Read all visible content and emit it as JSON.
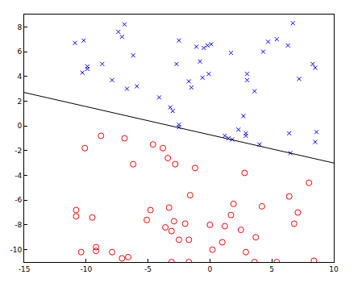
{
  "chart_data": {
    "type": "scatter",
    "xlim": [
      -15,
      10
    ],
    "ylim": [
      -11,
      9
    ],
    "xticks": [
      -15,
      -10,
      -5,
      0,
      5,
      10
    ],
    "yticks": [
      -10,
      -8,
      -6,
      -4,
      -2,
      0,
      2,
      4,
      6,
      8
    ],
    "grid": false,
    "series": [
      {
        "type": "scatter",
        "color": "#0000ff",
        "marker": "x",
        "x": [
          -10.9,
          -10.2,
          -10.3,
          -9.9,
          -9.9,
          -8.7,
          -7.4,
          -7.1,
          -6.9,
          -6.7,
          -6.2,
          -5.9,
          -7.9,
          -4.1,
          -3.2,
          -3.0,
          -2.5,
          -2.5,
          -2.7,
          -2.5,
          -1.7,
          -1.5,
          -1.1,
          -0.8,
          -0.5,
          -0.2,
          0.1,
          -0.1,
          -0.6,
          1.2,
          1.5,
          1.7,
          2.3,
          2.7,
          3.0,
          3.0,
          2.9,
          2.9,
          3.6,
          4.3,
          4.7,
          5.4,
          6.3,
          6.4,
          6.5,
          6.7,
          7.2,
          8.3,
          8.5,
          8.6,
          8.5,
          4.0,
          1.8
        ],
        "values": [
          6.7,
          6.9,
          4.3,
          4.8,
          4.6,
          5.0,
          7.6,
          7.2,
          8.2,
          3.0,
          5.7,
          3.2,
          3.7,
          2.3,
          1.5,
          1.2,
          0.1,
          -0.1,
          5.0,
          6.9,
          3.6,
          3.1,
          6.4,
          5.2,
          6.3,
          6.5,
          6.6,
          4.2,
          3.9,
          -0.8,
          -1.0,
          5.9,
          -0.3,
          0.8,
          4.2,
          3.7,
          -0.8,
          -0.6,
          2.8,
          6.0,
          6.8,
          7.0,
          6.5,
          -0.6,
          -2.2,
          8.3,
          3.8,
          5.0,
          4.7,
          -0.5,
          -1.3,
          -1.5,
          -1.1
        ]
      },
      {
        "type": "scatter",
        "color": "#ff0000",
        "marker": "circle-open",
        "x": [
          -10.8,
          -10.8,
          -10.4,
          -10.1,
          -9.5,
          -9.2,
          -9.2,
          -8.8,
          -7.9,
          -7.1,
          -6.9,
          -6.6,
          -6.2,
          -5.1,
          -4.8,
          -4.6,
          -3.8,
          -3.6,
          -3.4,
          -3.3,
          -3.1,
          -3.1,
          -2.9,
          -2.8,
          -2.5,
          -2.0,
          -1.7,
          -1.6,
          -1.7,
          -1.2,
          0.0,
          0.2,
          1.0,
          1.2,
          1.7,
          1.9,
          2.5,
          2.8,
          2.9,
          3.7,
          3.6,
          4.2,
          5.4,
          6.4,
          6.8,
          7.1,
          8.0,
          8.4
        ],
        "values": [
          -7.3,
          -6.8,
          -10.2,
          -1.8,
          -7.4,
          -9.8,
          -10.1,
          -0.8,
          -10.2,
          -10.7,
          -1.0,
          -10.6,
          -3.1,
          -7.6,
          -6.8,
          -1.5,
          -1.8,
          -8.2,
          -2.6,
          -6.6,
          -11.0,
          -8.5,
          -7.7,
          -3.1,
          -9.2,
          -7.9,
          -9.2,
          -5.6,
          -11.0,
          -3.4,
          -8.0,
          -10.0,
          -9.4,
          -8.1,
          -7.2,
          -6.3,
          -8.4,
          -3.8,
          -10.2,
          -9.0,
          -11.0,
          -6.5,
          -11.0,
          -5.7,
          -7.9,
          -7.0,
          -4.6,
          -10.9
        ]
      },
      {
        "type": "line",
        "color": "#000000",
        "line_style": "solid",
        "x": [
          -15,
          10
        ],
        "values": [
          2.7,
          -3.0
        ]
      }
    ]
  }
}
